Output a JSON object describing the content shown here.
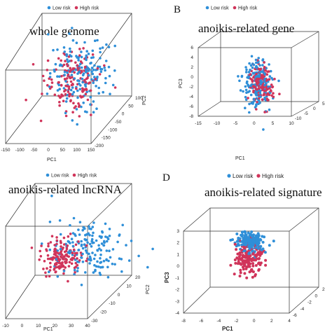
{
  "colors": {
    "low": "#2f8fd8",
    "high": "#d0345a"
  },
  "chart_data": [
    {
      "type": "scatter",
      "panel_label": "",
      "title": "whole genome",
      "legend": [
        "Low risk",
        "High risk"
      ],
      "xlabel": "PC1",
      "ylabel": "PC2",
      "zlabel": "",
      "x_ticks": [
        "-150",
        "-100",
        "-50",
        "0",
        "50",
        "100",
        "150"
      ],
      "y_ticks": [
        "-200",
        "-150",
        "-100",
        "-50",
        "0",
        "50",
        "100"
      ],
      "z_ticks": [],
      "series": [
        {
          "name": "Low risk",
          "values": [],
          "center": [
            20,
            10,
            0.55
          ],
          "spread": [
            30,
            30,
            0.14
          ],
          "n": 170
        },
        {
          "name": "High risk",
          "values": [],
          "center": [
            0,
            0,
            0.5
          ],
          "spread": [
            25,
            25,
            0.12
          ],
          "n": 150
        }
      ]
    },
    {
      "type": "scatter",
      "panel_label": "B",
      "title": "anoikis-related gene",
      "legend": [
        "Low risk",
        "High risk"
      ],
      "xlabel": "PC1",
      "ylabel": "",
      "zlabel": "PC3",
      "x_ticks": [
        "-15",
        "-10",
        "-5",
        "0",
        "5",
        "10"
      ],
      "y_ticks": [
        "-10",
        "-5",
        "0",
        "5"
      ],
      "z_ticks": [
        "-8",
        "-6",
        "-4",
        "-2",
        "0",
        "2",
        "4",
        "6"
      ],
      "series": [
        {
          "name": "Low risk",
          "values": [],
          "center": [
            3,
            -1,
            0
          ],
          "spread": [
            3,
            3,
            2.4
          ],
          "n": 180
        },
        {
          "name": "High risk",
          "values": [],
          "center": [
            4,
            1,
            0
          ],
          "spread": [
            2.5,
            2.5,
            1.8
          ],
          "n": 160
        }
      ]
    },
    {
      "type": "scatter",
      "panel_label": "",
      "title": "anoikis-related lncRNA",
      "legend": [
        "Low risk",
        "High risk"
      ],
      "xlabel": "PC1",
      "ylabel": "PC2",
      "zlabel": "",
      "x_ticks": [
        "-10",
        "0",
        "10",
        "20",
        "30",
        "40"
      ],
      "y_ticks": [
        "-30",
        "-20",
        "-10",
        "0",
        "10",
        "20"
      ],
      "z_ticks": [],
      "series": [
        {
          "name": "Low risk",
          "values": [],
          "center": [
            15,
            0,
            0.55
          ],
          "spread": [
            9,
            10,
            0.18
          ],
          "n": 170
        },
        {
          "name": "High risk",
          "values": [],
          "center": [
            2,
            -2,
            0.45
          ],
          "spread": [
            5,
            6,
            0.1
          ],
          "n": 150
        }
      ]
    },
    {
      "type": "scatter",
      "panel_label": "D",
      "title": "anoikis-related signature",
      "legend": [
        "Low risk",
        "High risk"
      ],
      "xlabel": "PC1",
      "ylabel": "",
      "zlabel": "PC3",
      "x_ticks": [
        "-8",
        "-6",
        "-4",
        "-2",
        "0",
        "2",
        "4"
      ],
      "y_ticks": [
        "-6",
        "-4",
        "-2",
        "0",
        "2"
      ],
      "z_ticks": [
        "-4",
        "-3",
        "-2",
        "-1",
        "0",
        "1",
        "2",
        "3"
      ],
      "series": [
        {
          "name": "Low risk",
          "values": [],
          "center": [
            2,
            1,
            1.6
          ],
          "spread": [
            1.2,
            1.2,
            0.6
          ],
          "n": 220
        },
        {
          "name": "High risk",
          "values": [],
          "center": [
            2.5,
            -1,
            -0.8
          ],
          "spread": [
            1.2,
            1.5,
            1.2
          ],
          "n": 170
        }
      ]
    }
  ]
}
